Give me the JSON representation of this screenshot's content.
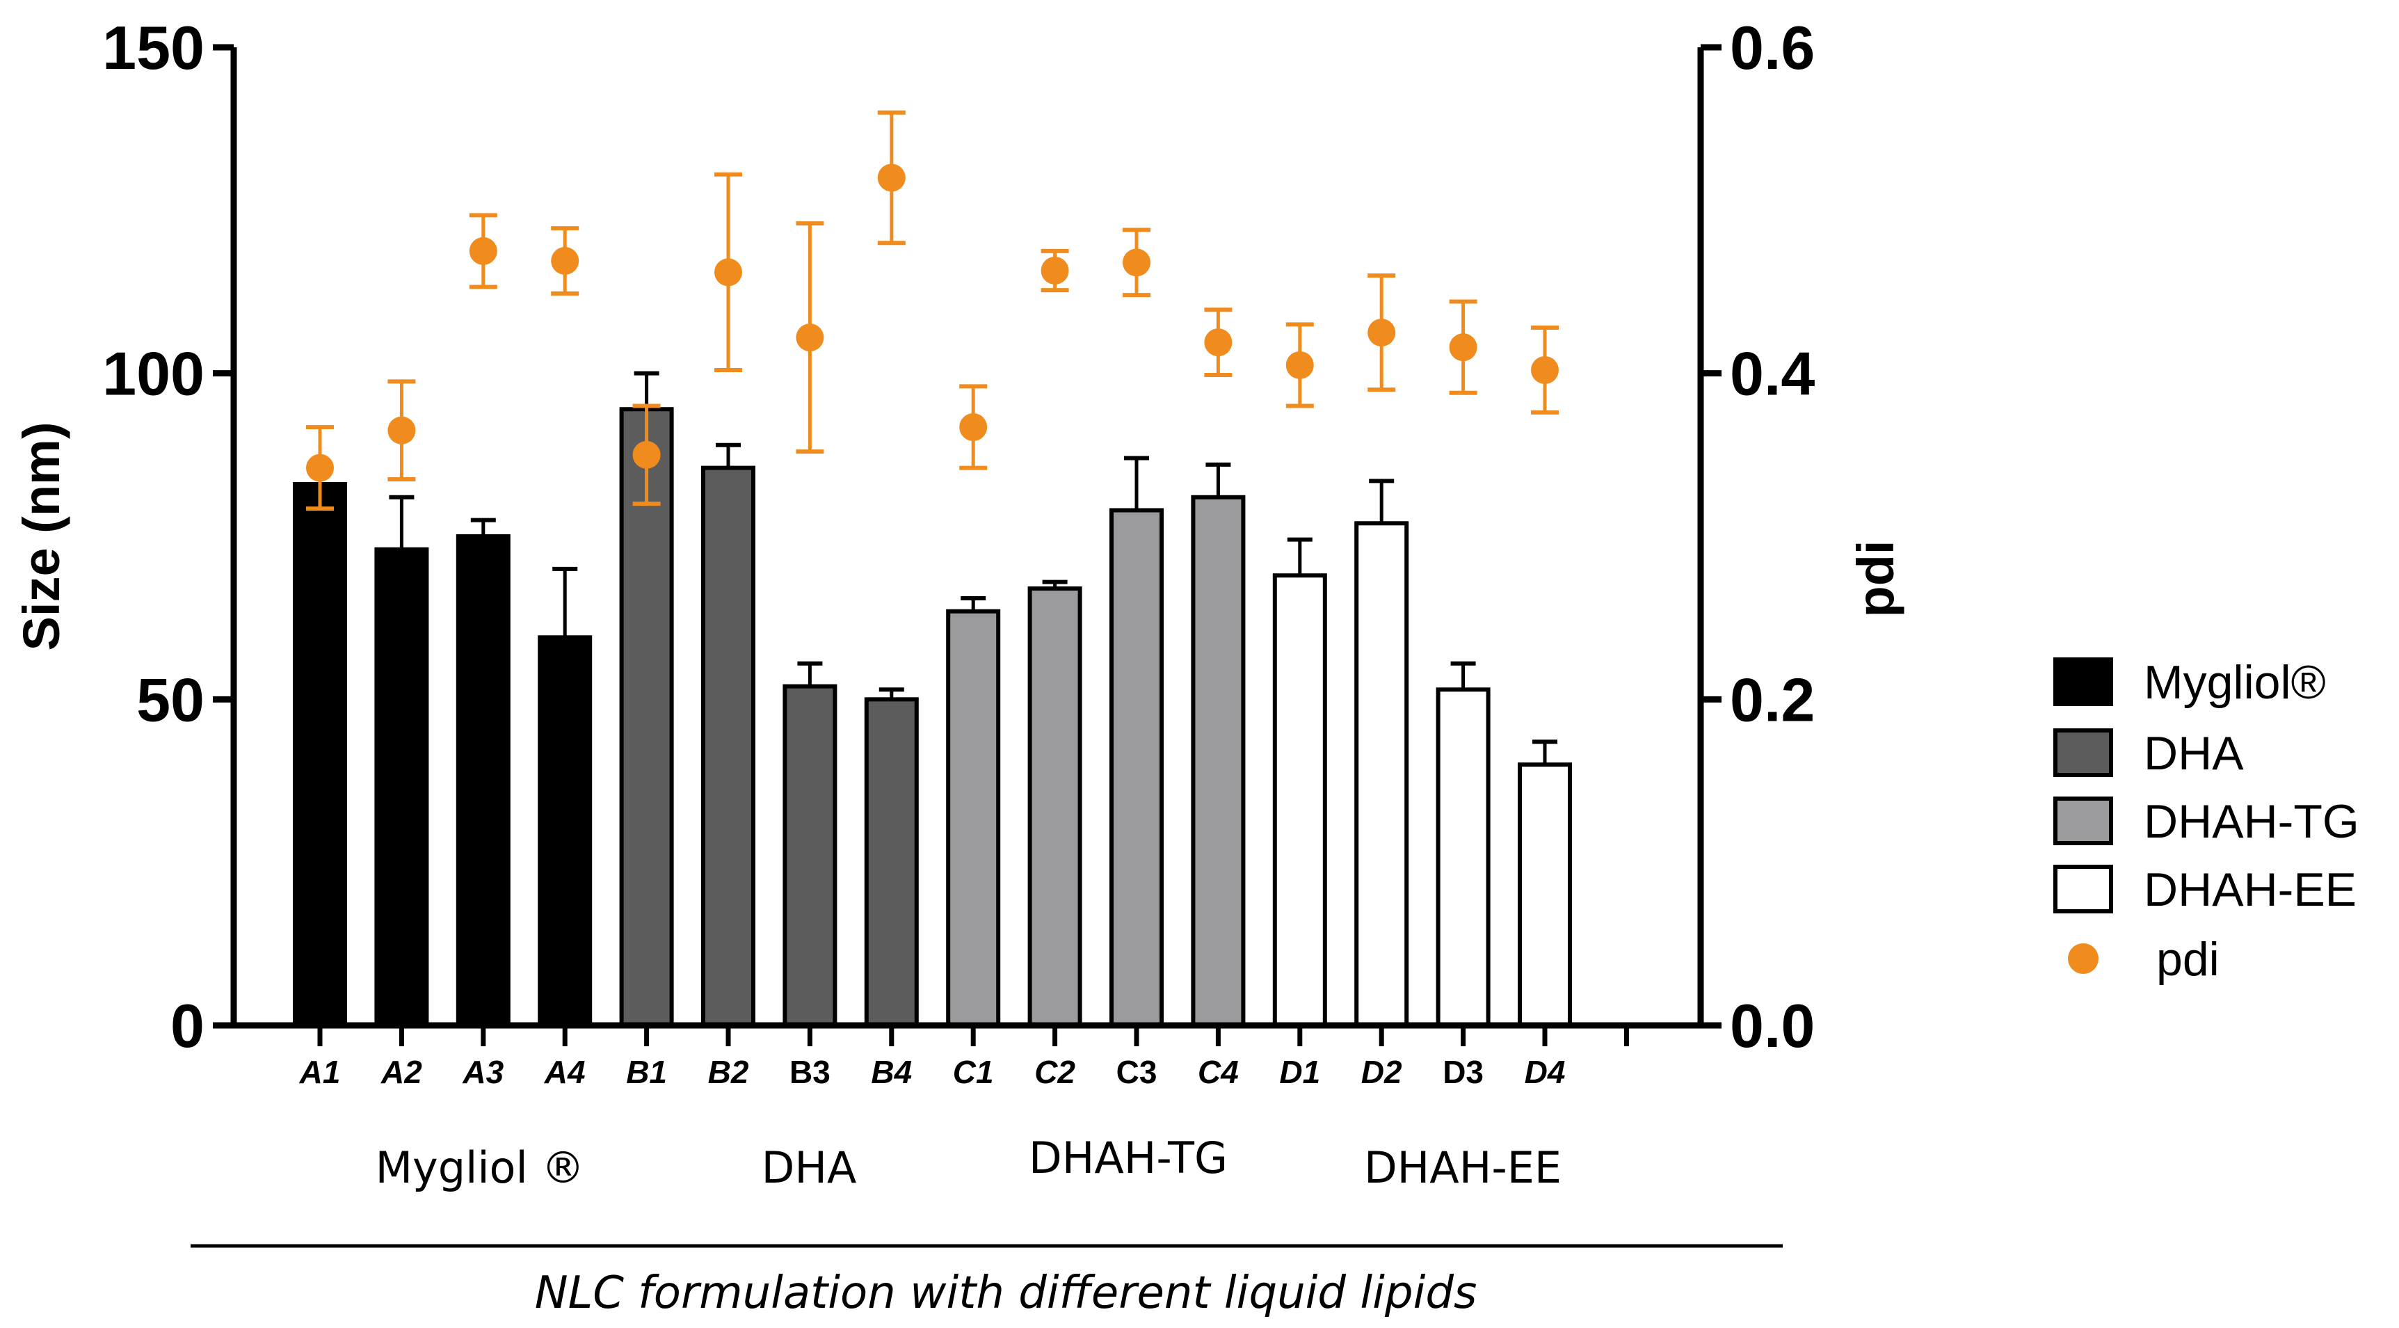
{
  "chart_data": {
    "type": "bar",
    "title": "",
    "ylabel": "Size (nm)",
    "ylabel_right": "pdi",
    "ylim": [
      0,
      150
    ],
    "ylim_right": [
      0,
      0.6
    ],
    "yticks": [
      "0",
      "50",
      "100",
      "150"
    ],
    "yticks_right": [
      "0.0",
      "0.2",
      "0.4",
      "0.6"
    ],
    "categories": [
      {
        "label": "A1",
        "group": 0,
        "italic": true
      },
      {
        "label": "A2",
        "group": 0,
        "italic": true
      },
      {
        "label": "A3",
        "group": 0,
        "italic": true
      },
      {
        "label": "A4",
        "group": 0,
        "italic": true
      },
      {
        "label": "B1",
        "group": 1,
        "italic": true
      },
      {
        "label": "B2",
        "group": 1,
        "italic": true
      },
      {
        "label": "B3",
        "group": 1,
        "italic": false
      },
      {
        "label": "B4",
        "group": 1,
        "italic": true
      },
      {
        "label": "C1",
        "group": 2,
        "italic": true
      },
      {
        "label": "C2",
        "group": 2,
        "italic": true
      },
      {
        "label": "C3",
        "group": 2,
        "italic": false
      },
      {
        "label": "C4",
        "group": 2,
        "italic": true
      },
      {
        "label": "D1",
        "group": 3,
        "italic": true
      },
      {
        "label": "D2",
        "group": 3,
        "italic": true
      },
      {
        "label": "D3",
        "group": 3,
        "italic": false
      },
      {
        "label": "D4",
        "group": 3,
        "italic": true
      }
    ],
    "size_values": [
      83,
      73,
      75,
      59.5,
      94.5,
      85.5,
      52,
      50,
      63.5,
      67,
      79,
      81,
      69,
      77,
      51.5,
      40
    ],
    "size_errors": [
      2.5,
      8,
      2.5,
      10.5,
      5.5,
      3.5,
      3.5,
      1.5,
      2,
      1,
      8,
      5,
      5.5,
      6.5,
      4,
      3.5
    ],
    "pdi_values": [
      0.342,
      0.365,
      0.475,
      0.469,
      0.35,
      0.462,
      0.422,
      0.52,
      0.367,
      0.463,
      0.468,
      0.419,
      0.405,
      0.425,
      0.416,
      0.402
    ],
    "pdi_errors": [
      0.025,
      0.03,
      0.022,
      0.02,
      0.03,
      0.06,
      0.07,
      0.04,
      0.025,
      0.012,
      0.02,
      0.02,
      0.025,
      0.035,
      0.028,
      0.026
    ],
    "groups": [
      {
        "name": "Mygliol®",
        "axis_label": "Mygliol ®",
        "fill": "#000000"
      },
      {
        "name": "DHA",
        "axis_label": "DHA",
        "fill": "#5c5c5c"
      },
      {
        "name": "DHAH-TG",
        "axis_label": "DHAH-TG",
        "fill": "#9b9b9e"
      },
      {
        "name": "DHAH-EE",
        "axis_label": "DHAH-EE",
        "fill": "#ffffff"
      }
    ],
    "pdi_color": "#f08c1e",
    "legend": [
      "Mygliol®",
      "DHA",
      "DHAH-TG",
      "DHAH-EE",
      "pdi"
    ],
    "legend_position": "right",
    "xlabel": "NLC formulation with different liquid lipids"
  }
}
